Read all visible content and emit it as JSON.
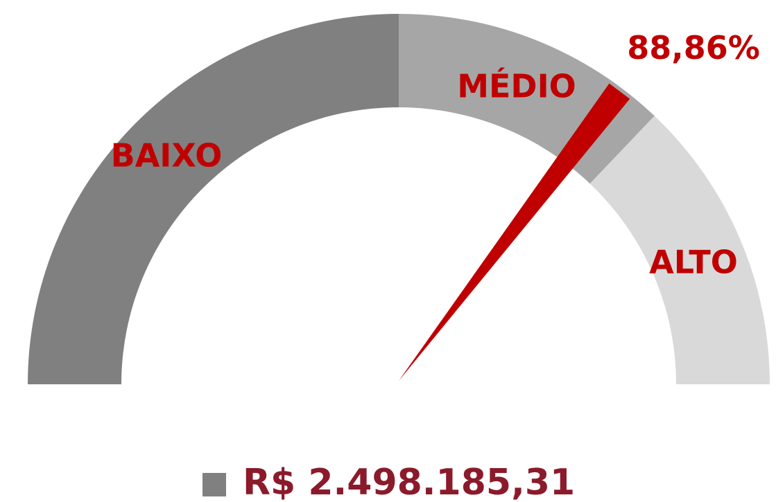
{
  "chart_data": {
    "type": "gauge",
    "value": 88.86,
    "value_label": "88,86%",
    "needle_color": "#c00000",
    "range": [
      0,
      126
    ],
    "bands": [
      {
        "name": "BAIXO",
        "from": 0,
        "to": 63,
        "color": "#808080"
      },
      {
        "name": "MÉDIO",
        "from": 63,
        "to": 93.5,
        "color": "#a6a6a6"
      },
      {
        "name": "ALTO",
        "from": 93.5,
        "to": 126,
        "color": "#d9d9d9"
      }
    ],
    "legend": {
      "label": "R$ 2.498.185,31",
      "color": "#808080"
    }
  }
}
